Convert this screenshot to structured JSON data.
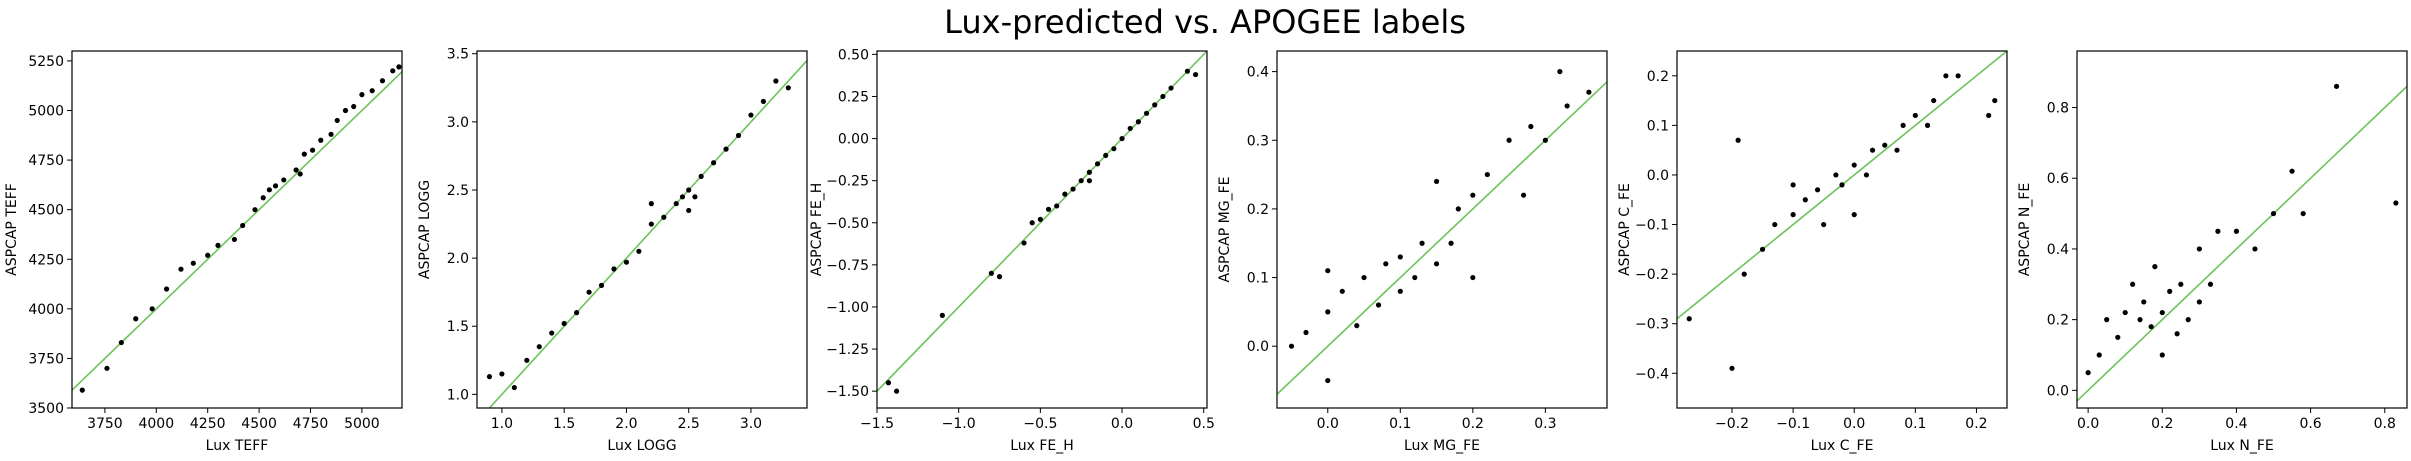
{
  "title": "Lux-predicted vs. APOGEE labels",
  "chart_data": [
    {
      "type": "scatter",
      "xlabel": "Lux TEFF",
      "ylabel": "ASPCAP TEFF",
      "color": "#000000",
      "identity_line": true,
      "identity_color": "#6cc35a",
      "xlim": [
        3590,
        5195
      ],
      "ylim": [
        3500,
        5300
      ],
      "xticks": [
        3750,
        4000,
        4250,
        4500,
        4750,
        5000
      ],
      "yticks": [
        3500,
        3750,
        4000,
        4250,
        4500,
        4750,
        5000,
        5250
      ],
      "x": [
        3640,
        3760,
        3830,
        3900,
        3980,
        4050,
        4120,
        4180,
        4250,
        4300,
        4380,
        4420,
        4480,
        4520,
        4580,
        4620,
        4680,
        4720,
        4760,
        4800,
        4850,
        4880,
        4920,
        4960,
        5000,
        5050,
        5100,
        5150,
        5180,
        4700,
        4550
      ],
      "y": [
        3590,
        3700,
        3830,
        3950,
        4000,
        4100,
        4200,
        4230,
        4270,
        4320,
        4350,
        4420,
        4500,
        4560,
        4620,
        4650,
        4700,
        4780,
        4800,
        4850,
        4880,
        4950,
        5000,
        5020,
        5080,
        5100,
        5150,
        5200,
        5220,
        4680,
        4600
      ]
    },
    {
      "type": "scatter",
      "xlabel": "Lux LOGG",
      "ylabel": "ASPCAP LOGG",
      "color": "#000000",
      "identity_line": true,
      "identity_color": "#6cc35a",
      "xlim": [
        0.8,
        3.45
      ],
      "ylim": [
        0.9,
        3.52
      ],
      "xticks": [
        {
          "value": 1,
          "label": "1.0"
        },
        1.5,
        {
          "value": 2,
          "label": "2.0"
        },
        2.5,
        {
          "value": 3,
          "label": "3.0"
        }
      ],
      "yticks": [
        {
          "value": 1,
          "label": "1.0"
        },
        1.5,
        {
          "value": 2,
          "label": "2.0"
        },
        2.5,
        {
          "value": 3,
          "label": "3.0"
        },
        3.5
      ],
      "x": [
        0.9,
        1.0,
        1.1,
        1.2,
        1.3,
        1.4,
        1.5,
        1.6,
        1.7,
        1.8,
        1.9,
        2.0,
        2.1,
        2.2,
        2.3,
        2.4,
        2.45,
        2.5,
        2.55,
        2.6,
        2.7,
        2.8,
        2.9,
        3.0,
        3.1,
        3.2,
        3.3,
        2.5,
        2.2
      ],
      "y": [
        1.13,
        1.15,
        1.05,
        1.25,
        1.35,
        1.45,
        1.52,
        1.6,
        1.75,
        1.8,
        1.92,
        1.97,
        2.05,
        2.25,
        2.3,
        2.4,
        2.45,
        2.5,
        2.45,
        2.6,
        2.7,
        2.8,
        2.9,
        3.05,
        3.15,
        3.3,
        3.25,
        2.35,
        2.4
      ]
    },
    {
      "type": "scatter",
      "xlabel": "Lux FE_H",
      "ylabel": "ASPCAP FE_H",
      "color": "#000000",
      "identity_line": true,
      "identity_color": "#6cc35a",
      "xlim": [
        -1.5,
        0.52
      ],
      "ylim": [
        -1.6,
        0.52
      ],
      "xticks": [
        {
          "value": -1.5,
          "label": "−1.5"
        },
        {
          "value": -1,
          "label": "−1.0"
        },
        {
          "value": -0.5,
          "label": "−0.5"
        },
        {
          "value": 0,
          "label": "0.0"
        },
        0.5
      ],
      "yticks": [
        {
          "value": -1.5,
          "label": "−1.50"
        },
        {
          "value": -1.25,
          "label": "−1.25"
        },
        {
          "value": -1,
          "label": "−1.00"
        },
        {
          "value": -0.75,
          "label": "−0.75"
        },
        {
          "value": -0.5,
          "label": "−0.50"
        },
        {
          "value": -0.25,
          "label": "−0.25"
        },
        {
          "value": 0,
          "label": "0.00"
        },
        0.25,
        {
          "value": 0.5,
          "label": "0.50"
        }
      ],
      "x": [
        -1.43,
        -1.38,
        -1.1,
        -0.8,
        -0.75,
        -0.6,
        -0.55,
        -0.5,
        -0.45,
        -0.4,
        -0.35,
        -0.3,
        -0.25,
        -0.2,
        -0.15,
        -0.1,
        -0.05,
        0.0,
        0.05,
        0.1,
        0.15,
        0.2,
        0.25,
        0.3,
        0.4,
        0.45,
        -0.2
      ],
      "y": [
        -1.45,
        -1.5,
        -1.05,
        -0.8,
        -0.82,
        -0.62,
        -0.5,
        -0.48,
        -0.42,
        -0.4,
        -0.33,
        -0.3,
        -0.25,
        -0.2,
        -0.15,
        -0.1,
        -0.06,
        0.0,
        0.06,
        0.1,
        0.15,
        0.2,
        0.25,
        0.3,
        0.4,
        0.38,
        -0.25
      ]
    },
    {
      "type": "scatter",
      "xlabel": "Lux MG_FE",
      "ylabel": "ASPCAP MG_FE",
      "color": "#000000",
      "identity_line": true,
      "identity_color": "#6cc35a",
      "xlim": [
        -0.07,
        0.385
      ],
      "ylim": [
        -0.09,
        0.43
      ],
      "xticks": [
        {
          "value": 0,
          "label": "0.0"
        },
        0.1,
        0.2,
        0.3
      ],
      "yticks": [
        {
          "value": 0,
          "label": "0.0"
        },
        0.1,
        0.2,
        0.3,
        0.4
      ],
      "x": [
        -0.05,
        -0.03,
        0.0,
        0.0,
        0.02,
        0.04,
        0.05,
        0.07,
        0.08,
        0.1,
        0.1,
        0.12,
        0.13,
        0.15,
        0.15,
        0.17,
        0.18,
        0.2,
        0.2,
        0.22,
        0.25,
        0.27,
        0.28,
        0.3,
        0.32,
        0.33,
        0.36,
        0.0
      ],
      "y": [
        0.0,
        0.02,
        0.05,
        -0.05,
        0.08,
        0.03,
        0.1,
        0.06,
        0.12,
        0.08,
        0.13,
        0.1,
        0.15,
        0.12,
        0.24,
        0.15,
        0.2,
        0.22,
        0.1,
        0.25,
        0.3,
        0.22,
        0.32,
        0.3,
        0.4,
        0.35,
        0.37,
        0.11
      ]
    },
    {
      "type": "scatter",
      "xlabel": "Lux C_FE",
      "ylabel": "ASPCAP C_FE",
      "color": "#000000",
      "identity_line": true,
      "identity_color": "#6cc35a",
      "xlim": [
        -0.29,
        0.25
      ],
      "ylim": [
        -0.47,
        0.25
      ],
      "xticks": [
        {
          "value": -0.2,
          "label": "−0.2"
        },
        {
          "value": -0.1,
          "label": "−0.1"
        },
        {
          "value": 0,
          "label": "0.0"
        },
        0.1,
        0.2
      ],
      "yticks": [
        {
          "value": -0.4,
          "label": "−0.4"
        },
        {
          "value": -0.3,
          "label": "−0.3"
        },
        {
          "value": -0.2,
          "label": "−0.2"
        },
        {
          "value": -0.1,
          "label": "−0.1"
        },
        {
          "value": 0,
          "label": "0.0"
        },
        0.1,
        0.2
      ],
      "x": [
        -0.27,
        -0.2,
        -0.19,
        -0.18,
        -0.15,
        -0.13,
        -0.1,
        -0.08,
        -0.06,
        -0.05,
        -0.03,
        -0.02,
        0.0,
        0.02,
        0.03,
        0.05,
        0.07,
        0.08,
        0.1,
        0.12,
        0.13,
        0.15,
        0.17,
        0.22,
        0.23,
        0.0,
        -0.1
      ],
      "y": [
        -0.29,
        -0.39,
        0.07,
        -0.2,
        -0.15,
        -0.1,
        -0.08,
        -0.05,
        -0.03,
        -0.1,
        0.0,
        -0.02,
        0.02,
        0.0,
        0.05,
        0.06,
        0.05,
        0.1,
        0.12,
        0.1,
        0.15,
        0.2,
        0.2,
        0.12,
        0.15,
        -0.08,
        -0.02
      ]
    },
    {
      "type": "scatter",
      "xlabel": "Lux N_FE",
      "ylabel": "ASPCAP N_FE",
      "color": "#000000",
      "identity_line": true,
      "identity_color": "#6cc35a",
      "xlim": [
        -0.03,
        0.86
      ],
      "ylim": [
        -0.05,
        0.96
      ],
      "xticks": [
        {
          "value": 0,
          "label": "0.0"
        },
        0.2,
        0.4,
        0.6,
        0.8
      ],
      "yticks": [
        {
          "value": 0,
          "label": "0.0"
        },
        0.2,
        0.4,
        0.6,
        0.8
      ],
      "x": [
        0.0,
        0.03,
        0.05,
        0.08,
        0.1,
        0.12,
        0.14,
        0.15,
        0.17,
        0.18,
        0.2,
        0.2,
        0.22,
        0.24,
        0.25,
        0.27,
        0.3,
        0.3,
        0.33,
        0.35,
        0.4,
        0.45,
        0.5,
        0.55,
        0.58,
        0.67,
        0.83
      ],
      "y": [
        0.05,
        0.1,
        0.2,
        0.15,
        0.22,
        0.3,
        0.2,
        0.25,
        0.18,
        0.35,
        0.22,
        0.1,
        0.28,
        0.16,
        0.3,
        0.2,
        0.25,
        0.4,
        0.3,
        0.45,
        0.45,
        0.4,
        0.5,
        0.62,
        0.5,
        0.86,
        0.53
      ]
    }
  ]
}
